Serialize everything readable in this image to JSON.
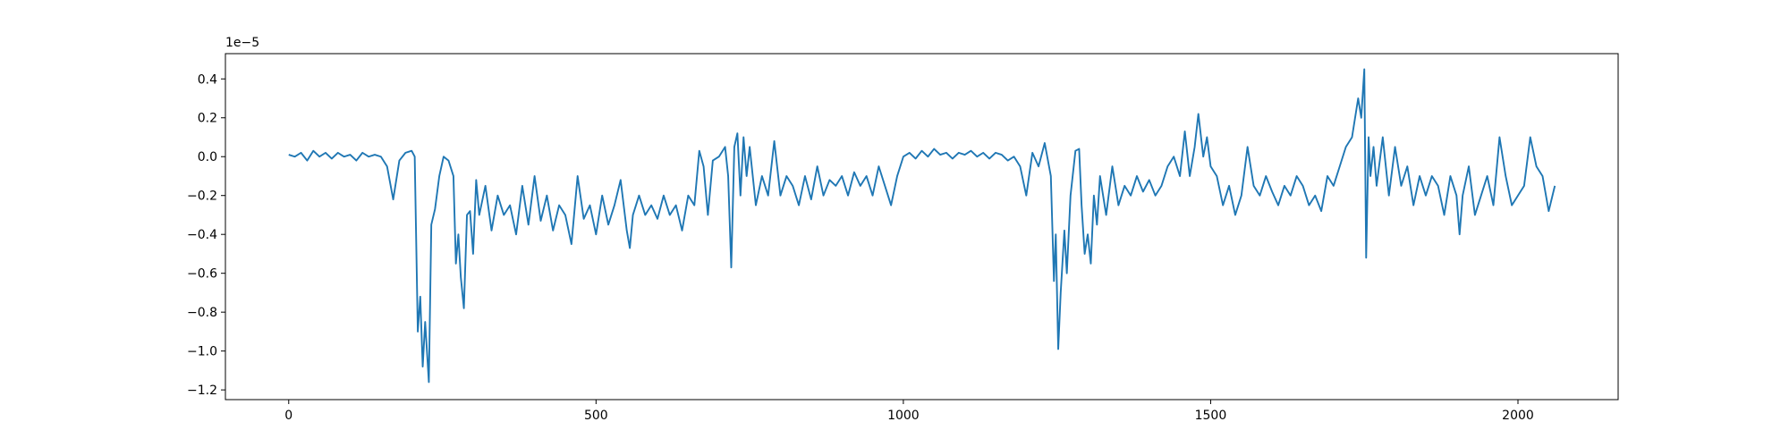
{
  "chart_data": {
    "type": "line",
    "color": "#1f77b4",
    "grid": false,
    "y_offset_text": "1e−5",
    "xlim": [
      -103,
      2163
    ],
    "ylim": [
      -1.25,
      0.53
    ],
    "xticks": [
      0,
      500,
      1000,
      1500,
      2000
    ],
    "yticks": [
      {
        "value": -1.2,
        "label": "−1.2"
      },
      {
        "value": -1.0,
        "label": "−1.0"
      },
      {
        "value": -0.8,
        "label": "−0.8"
      },
      {
        "value": -0.6,
        "label": "−0.6"
      },
      {
        "value": -0.4,
        "label": "−0.4"
      },
      {
        "value": -0.2,
        "label": "−0.2"
      },
      {
        "value": 0.0,
        "label": "0.0"
      },
      0.2,
      0.4
    ],
    "x": [
      0,
      10,
      20,
      30,
      40,
      50,
      60,
      70,
      80,
      90,
      100,
      110,
      120,
      130,
      140,
      150,
      160,
      170,
      180,
      190,
      200,
      205,
      210,
      214,
      218,
      222,
      228,
      232,
      238,
      245,
      252,
      260,
      268,
      272,
      276,
      280,
      285,
      290,
      295,
      300,
      305,
      310,
      320,
      330,
      340,
      350,
      360,
      370,
      380,
      390,
      400,
      410,
      420,
      430,
      440,
      450,
      460,
      470,
      480,
      490,
      500,
      510,
      520,
      530,
      540,
      550,
      555,
      560,
      570,
      580,
      590,
      600,
      610,
      620,
      630,
      640,
      650,
      660,
      668,
      675,
      682,
      690,
      700,
      710,
      715,
      720,
      725,
      730,
      735,
      740,
      745,
      750,
      760,
      770,
      780,
      790,
      800,
      810,
      820,
      830,
      840,
      850,
      860,
      870,
      880,
      890,
      900,
      910,
      920,
      930,
      940,
      950,
      960,
      970,
      980,
      990,
      1000,
      1010,
      1020,
      1030,
      1040,
      1050,
      1060,
      1070,
      1080,
      1090,
      1100,
      1110,
      1120,
      1130,
      1140,
      1150,
      1160,
      1170,
      1180,
      1190,
      1200,
      1210,
      1220,
      1230,
      1240,
      1245,
      1248,
      1252,
      1256,
      1262,
      1266,
      1272,
      1280,
      1286,
      1290,
      1295,
      1300,
      1305,
      1310,
      1315,
      1320,
      1330,
      1340,
      1350,
      1360,
      1370,
      1380,
      1390,
      1400,
      1410,
      1420,
      1430,
      1440,
      1450,
      1458,
      1466,
      1474,
      1480,
      1488,
      1494,
      1500,
      1510,
      1520,
      1530,
      1540,
      1550,
      1560,
      1570,
      1580,
      1590,
      1600,
      1610,
      1620,
      1630,
      1640,
      1650,
      1660,
      1670,
      1680,
      1690,
      1700,
      1710,
      1720,
      1730,
      1740,
      1745,
      1750,
      1753,
      1757,
      1760,
      1765,
      1770,
      1780,
      1790,
      1800,
      1810,
      1820,
      1830,
      1840,
      1850,
      1860,
      1870,
      1880,
      1890,
      1900,
      1905,
      1910,
      1920,
      1930,
      1940,
      1950,
      1960,
      1970,
      1980,
      1990,
      2000,
      2010,
      2020,
      2030,
      2040,
      2050,
      2060
    ],
    "values": [
      0.01,
      0.0,
      0.02,
      -0.02,
      0.03,
      0.0,
      0.02,
      -0.01,
      0.02,
      0.0,
      0.01,
      -0.02,
      0.02,
      0.0,
      0.01,
      0.0,
      -0.05,
      -0.22,
      -0.02,
      0.02,
      0.03,
      0.0,
      -0.9,
      -0.72,
      -1.08,
      -0.85,
      -1.16,
      -0.35,
      -0.27,
      -0.1,
      0.0,
      -0.02,
      -0.1,
      -0.55,
      -0.4,
      -0.62,
      -0.78,
      -0.3,
      -0.28,
      -0.5,
      -0.12,
      -0.3,
      -0.15,
      -0.38,
      -0.2,
      -0.3,
      -0.25,
      -0.4,
      -0.15,
      -0.35,
      -0.1,
      -0.33,
      -0.2,
      -0.38,
      -0.25,
      -0.3,
      -0.45,
      -0.1,
      -0.32,
      -0.25,
      -0.4,
      -0.2,
      -0.35,
      -0.25,
      -0.12,
      -0.38,
      -0.47,
      -0.3,
      -0.2,
      -0.3,
      -0.25,
      -0.32,
      -0.2,
      -0.3,
      -0.25,
      -0.38,
      -0.2,
      -0.25,
      0.03,
      -0.05,
      -0.3,
      -0.02,
      0.0,
      0.05,
      -0.1,
      -0.57,
      0.05,
      0.12,
      -0.2,
      0.1,
      -0.1,
      0.05,
      -0.25,
      -0.1,
      -0.2,
      0.08,
      -0.2,
      -0.1,
      -0.15,
      -0.25,
      -0.1,
      -0.22,
      -0.05,
      -0.2,
      -0.12,
      -0.15,
      -0.1,
      -0.2,
      -0.08,
      -0.15,
      -0.1,
      -0.2,
      -0.05,
      -0.15,
      -0.25,
      -0.1,
      0.0,
      0.02,
      -0.01,
      0.03,
      0.0,
      0.04,
      0.01,
      0.02,
      -0.01,
      0.02,
      0.01,
      0.03,
      0.0,
      0.02,
      -0.01,
      0.02,
      0.01,
      -0.02,
      0.0,
      -0.05,
      -0.2,
      0.02,
      -0.05,
      0.07,
      -0.1,
      -0.64,
      -0.4,
      -0.99,
      -0.7,
      -0.38,
      -0.6,
      -0.2,
      0.03,
      0.04,
      -0.25,
      -0.5,
      -0.4,
      -0.55,
      -0.2,
      -0.35,
      -0.1,
      -0.3,
      -0.05,
      -0.25,
      -0.15,
      -0.2,
      -0.1,
      -0.18,
      -0.12,
      -0.2,
      -0.15,
      -0.05,
      0.0,
      -0.1,
      0.13,
      -0.1,
      0.05,
      0.22,
      0.0,
      0.1,
      -0.05,
      -0.1,
      -0.25,
      -0.15,
      -0.3,
      -0.2,
      0.05,
      -0.15,
      -0.2,
      -0.1,
      -0.18,
      -0.25,
      -0.15,
      -0.2,
      -0.1,
      -0.15,
      -0.25,
      -0.2,
      -0.28,
      -0.1,
      -0.15,
      -0.05,
      0.05,
      0.1,
      0.3,
      0.2,
      0.45,
      -0.52,
      0.1,
      -0.1,
      0.05,
      -0.15,
      0.1,
      -0.2,
      0.05,
      -0.15,
      -0.05,
      -0.25,
      -0.1,
      -0.2,
      -0.1,
      -0.15,
      -0.3,
      -0.1,
      -0.2,
      -0.4,
      -0.2,
      -0.05,
      -0.3,
      -0.2,
      -0.1,
      -0.25,
      0.1,
      -0.1,
      -0.25,
      -0.2,
      -0.15,
      0.1,
      -0.05,
      -0.1,
      -0.28,
      -0.15
    ]
  }
}
